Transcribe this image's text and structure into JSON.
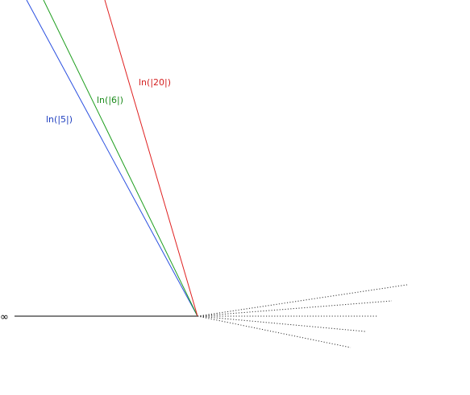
{
  "labels": {
    "blue": "ln(|5|)",
    "green": "ln(|6|)",
    "red": "ln(|20|)",
    "infinity": "∞"
  },
  "colors": {
    "blue": "#2a4fe0",
    "green": "#1e9e1e",
    "red": "#e02020",
    "black": "#000000",
    "dotted": "#333333"
  }
}
